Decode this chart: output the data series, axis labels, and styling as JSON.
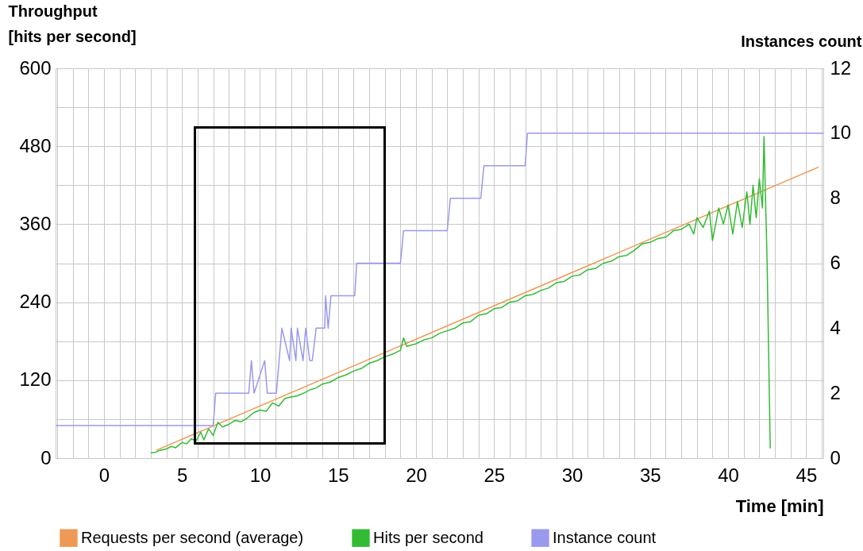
{
  "chart_data": {
    "type": "line",
    "ylabel": "Throughput\n[hits per second]",
    "y2label": "Instances count",
    "xlabel": "Time [min]",
    "xlim": [
      -3.1,
      46.1
    ],
    "ylim": [
      0,
      600
    ],
    "y2lim": [
      0,
      12
    ],
    "xticks": [
      {
        "value": -3,
        "label": null
      },
      {
        "value": -2,
        "label": null
      },
      {
        "value": -1,
        "label": null
      },
      0,
      {
        "value": 1,
        "label": null
      },
      {
        "value": 2,
        "label": null
      },
      {
        "value": 3,
        "label": null
      },
      {
        "value": 4,
        "label": null
      },
      5,
      {
        "value": 6,
        "label": null
      },
      {
        "value": 7,
        "label": null
      },
      {
        "value": 8,
        "label": null
      },
      {
        "value": 9,
        "label": null
      },
      10,
      {
        "value": 11,
        "label": null
      },
      {
        "value": 12,
        "label": null
      },
      {
        "value": 13,
        "label": null
      },
      {
        "value": 14,
        "label": null
      },
      15,
      {
        "value": 16,
        "label": null
      },
      {
        "value": 17,
        "label": null
      },
      {
        "value": 18,
        "label": null
      },
      {
        "value": 19,
        "label": null
      },
      20,
      {
        "value": 21,
        "label": null
      },
      {
        "value": 22,
        "label": null
      },
      {
        "value": 23,
        "label": null
      },
      {
        "value": 24,
        "label": null
      },
      25,
      {
        "value": 26,
        "label": null
      },
      {
        "value": 27,
        "label": null
      },
      {
        "value": 28,
        "label": null
      },
      {
        "value": 29,
        "label": null
      },
      30,
      {
        "value": 31,
        "label": null
      },
      {
        "value": 32,
        "label": null
      },
      {
        "value": 33,
        "label": null
      },
      {
        "value": 34,
        "label": null
      },
      35,
      {
        "value": 36,
        "label": null
      },
      {
        "value": 37,
        "label": null
      },
      {
        "value": 38,
        "label": null
      },
      {
        "value": 39,
        "label": null
      },
      40,
      {
        "value": 41,
        "label": null
      },
      {
        "value": 42,
        "label": null
      },
      {
        "value": 43,
        "label": null
      },
      {
        "value": 44,
        "label": null
      },
      45,
      {
        "value": 46,
        "label": null
      }
    ],
    "yticks": [
      0,
      {
        "value": 60,
        "label": null
      },
      120,
      {
        "value": 180,
        "label": null
      },
      240,
      {
        "value": 300,
        "label": null
      },
      360,
      {
        "value": 420,
        "label": null
      },
      480,
      {
        "value": 540,
        "label": null
      },
      600
    ],
    "y2ticks": [
      0,
      2,
      4,
      6,
      8,
      10,
      12
    ],
    "grid": true,
    "legend": "bottom",
    "marker": "none",
    "line_style": "solid",
    "series": [
      {
        "name": "Requests per second (average)",
        "color": "#ee9955",
        "x": [
          3.36,
          45.8
        ],
        "values": [
          12,
          448
        ]
      },
      {
        "name": "Hits per second",
        "color": "#33bb33",
        "x": [
          3.0,
          3.3,
          3.6,
          4.0,
          4.3,
          4.6,
          5.0,
          5.3,
          5.6,
          5.9,
          6.2,
          6.4,
          6.7,
          7.0,
          7.3,
          7.6,
          8.0,
          8.4,
          8.8,
          9.2,
          9.6,
          10.0,
          10.4,
          10.8,
          11.2,
          11.6,
          12.0,
          12.4,
          12.8,
          13.2,
          13.6,
          14.0,
          14.5,
          15.0,
          15.5,
          16.0,
          16.5,
          17.0,
          17.5,
          18.0,
          18.5,
          19.0,
          19.2,
          19.4,
          20.0,
          20.5,
          21.0,
          21.5,
          22.0,
          22.5,
          23.0,
          23.5,
          24.0,
          24.5,
          25.0,
          25.5,
          26.0,
          26.5,
          27.0,
          27.5,
          28.0,
          28.5,
          29.0,
          29.5,
          30.0,
          30.5,
          31.0,
          31.5,
          32.0,
          32.5,
          33.0,
          33.5,
          34.0,
          34.5,
          35.0,
          35.5,
          36.0,
          36.5,
          37.0,
          37.5,
          37.8,
          38.0,
          38.4,
          38.8,
          39.0,
          39.4,
          39.7,
          40.0,
          40.3,
          40.6,
          40.9,
          41.2,
          41.4,
          41.6,
          41.8,
          42.0,
          42.2,
          42.3,
          42.5,
          42.7
        ],
        "values": [
          8,
          9,
          12,
          14,
          18,
          16,
          24,
          22,
          30,
          26,
          40,
          28,
          45,
          35,
          55,
          48,
          52,
          58,
          56,
          62,
          70,
          74,
          72,
          85,
          80,
          92,
          94,
          96,
          100,
          105,
          108,
          114,
          117,
          124,
          128,
          134,
          138,
          146,
          150,
          156,
          160,
          166,
          185,
          172,
          176,
          182,
          185,
          192,
          196,
          200,
          208,
          210,
          220,
          222,
          230,
          232,
          240,
          242,
          250,
          252,
          258,
          262,
          270,
          272,
          280,
          282,
          290,
          292,
          300,
          303,
          310,
          312,
          320,
          330,
          332,
          338,
          340,
          350,
          352,
          360,
          345,
          370,
          355,
          380,
          335,
          385,
          360,
          390,
          345,
          395,
          355,
          410,
          360,
          420,
          370,
          430,
          385,
          495,
          300,
          15
        ]
      },
      {
        "name": "Instance count",
        "color": "#9999ee",
        "axis": "y2",
        "x": [
          -3.1,
          7.0,
          7.16,
          9.28,
          9.45,
          9.62,
          10.3,
          10.47,
          11.05,
          11.4,
          11.9,
          12.0,
          12.3,
          12.4,
          12.76,
          12.93,
          13.19,
          13.35,
          13.6,
          14.15,
          14.2,
          14.37,
          14.55,
          16.07,
          16.2,
          19.0,
          19.2,
          22.0,
          22.2,
          24.15,
          24.35,
          26.99,
          27.14,
          46.1
        ],
        "values": [
          1,
          1,
          2,
          2,
          3,
          2,
          3,
          2,
          2,
          4,
          3,
          4,
          3,
          4,
          3,
          4,
          3,
          3,
          4,
          4,
          5,
          4,
          5,
          5,
          6,
          6,
          7,
          7,
          8,
          8,
          9,
          9,
          10,
          10
        ]
      }
    ]
  }
}
